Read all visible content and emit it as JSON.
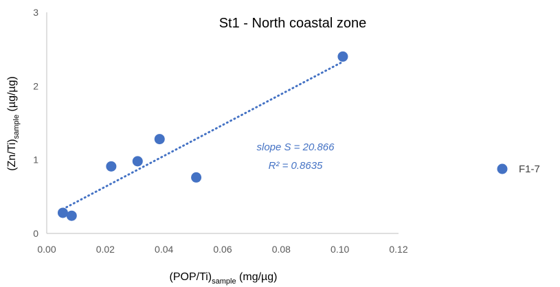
{
  "chart_data": {
    "type": "scatter",
    "title": "St1 - North coastal zone",
    "xlabel": {
      "main": "(POP/Ti)",
      "sub": "sample",
      "unit": " (mg/µg)"
    },
    "ylabel": {
      "main": "(Zn/Ti)",
      "sub": "sample",
      "unit": " (µg/µg)"
    },
    "xlim": [
      0,
      0.12
    ],
    "ylim": [
      0,
      3
    ],
    "x_ticks": [
      "0.00",
      "0.02",
      "0.04",
      "0.06",
      "0.08",
      "0.10",
      "0.12"
    ],
    "y_ticks": [
      "0",
      "1",
      "2",
      "3"
    ],
    "grid": false,
    "legend_position": "right",
    "series": [
      {
        "name": "F1-7",
        "color": "#4472C4",
        "points": [
          {
            "x": 0.0055,
            "y": 0.28
          },
          {
            "x": 0.0085,
            "y": 0.24
          },
          {
            "x": 0.022,
            "y": 0.91
          },
          {
            "x": 0.031,
            "y": 0.98
          },
          {
            "x": 0.0385,
            "y": 1.28
          },
          {
            "x": 0.051,
            "y": 0.76
          },
          {
            "x": 0.101,
            "y": 2.4
          }
        ]
      }
    ],
    "trendline": {
      "style": "dotted",
      "color": "#4472C4",
      "x_start": 0.0055,
      "x_end": 0.101,
      "y_start": 0.33,
      "y_end": 2.33
    },
    "annotation": {
      "line1": "slope S = 20.866",
      "line2": "R² = 0.8635"
    }
  }
}
